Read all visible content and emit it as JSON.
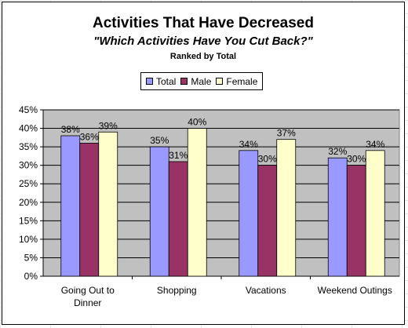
{
  "chart_data": {
    "type": "bar",
    "title": "Activities That Have Decreased",
    "subtitle": "\"Which Activities Have You Cut Back?\"",
    "subtitle2": "Ranked by Total",
    "categories": [
      [
        "Going Out to",
        "Dinner"
      ],
      [
        "Shopping"
      ],
      [
        "Vacations"
      ],
      [
        "Weekend Outings"
      ]
    ],
    "series": [
      {
        "name": "Total",
        "values": [
          38,
          35,
          34,
          32
        ],
        "color": "#9999ff"
      },
      {
        "name": "Male",
        "values": [
          36,
          31,
          30,
          30
        ],
        "color": "#993366"
      },
      {
        "name": "Female",
        "values": [
          39,
          40,
          37,
          34
        ],
        "color": "#ffffcc"
      }
    ],
    "data_labels": [
      [
        "38%",
        "35%",
        "34%",
        "32%"
      ],
      [
        "36%",
        "31%",
        "30%",
        "30%"
      ],
      [
        "39%",
        "40%",
        "37%",
        "34%"
      ]
    ],
    "ylim": [
      0,
      45
    ],
    "yticks": [
      0,
      5,
      10,
      15,
      20,
      25,
      30,
      35,
      40,
      45
    ],
    "ytick_labels": [
      "0%",
      "5%",
      "10%",
      "15%",
      "20%",
      "25%",
      "30%",
      "35%",
      "40%",
      "45%"
    ],
    "grid": true,
    "legend_position": "top",
    "plot_background": "#c0c0c0"
  }
}
